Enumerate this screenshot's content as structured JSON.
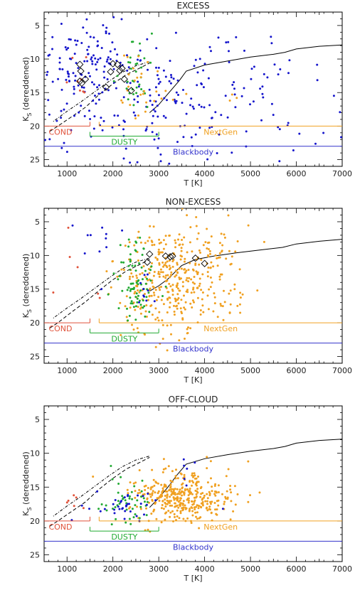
{
  "colors": {
    "axis": "#000000",
    "cond": "#e0523a",
    "dusty": "#22aa33",
    "nextgen": "#f0a020",
    "blackbody": "#3333cc",
    "excess_points": "#1515cc",
    "orange_points": "#f0a020",
    "green_points": "#22aa33",
    "red_points": "#e0523a"
  },
  "chart_data": [
    {
      "type": "scatter",
      "title": "EXCESS",
      "xlabel": "T [K]",
      "ylabel": "K_S (dereddened)",
      "ylabel_main": "K",
      "ylabel_sub": "S",
      "ylabel_rest": " (dereddened)",
      "xlim": [
        500,
        7000
      ],
      "ylim": [
        26,
        3
      ],
      "y_inverted": true,
      "xticks": [
        1000,
        2000,
        3000,
        4000,
        5000,
        6000,
        7000
      ],
      "yticks": [
        5,
        10,
        15,
        20,
        25
      ],
      "regions": [
        {
          "label": "COND",
          "x": [
            500,
            1500
          ],
          "y": 20,
          "color": "cond"
        },
        {
          "label": "DUSTY",
          "x": [
            1500,
            3000
          ],
          "y": 21.5,
          "color": "dusty"
        },
        {
          "label": "NextGen",
          "x": [
            1700,
            7000
          ],
          "y": 20,
          "color": "nextgen"
        },
        {
          "label": "Blackbody",
          "x": [
            500,
            7000
          ],
          "y": 23,
          "color": "blackbody"
        }
      ],
      "series": [
        {
          "color": "blue",
          "density": "high",
          "clusters": [
            [
              2300,
              15.2,
              2000,
              500,
              1.3,
              260,
              900
            ],
            [
              1600,
              9.5,
              500,
              150,
              2.5,
              60,
              100
            ]
          ]
        },
        {
          "color": "green",
          "clusters": [
            [
              2500,
              13,
              150,
              40,
              2.5,
              35,
              200
            ]
          ]
        },
        {
          "color": "orange",
          "clusters": [
            [
              2500,
              13.5,
              200,
              100,
              2,
              22,
              300
            ],
            [
              3000,
              15.5,
              250,
              80,
              0.8,
              6,
              400
            ]
          ]
        },
        {
          "color": "red",
          "clusters": [
            [
              1250,
              12,
              150,
              30,
              2.5,
              8,
              500
            ]
          ]
        }
      ],
      "extra_points": [
        [
          4600,
          15.3,
          "orange"
        ],
        [
          4700,
          15.8,
          "orange"
        ],
        [
          4550,
          16.2,
          "orange"
        ],
        [
          3850,
          12,
          "blue"
        ],
        [
          3600,
          15.2,
          "orange"
        ],
        [
          1350,
          5.3,
          "blue"
        ]
      ],
      "diamonds": [
        [
          1280,
          10.8
        ],
        [
          1300,
          11.8
        ],
        [
          1280,
          13.3
        ],
        [
          1320,
          13.6
        ],
        [
          1400,
          13.0
        ],
        [
          2000,
          10.7
        ],
        [
          2100,
          10.8
        ],
        [
          1950,
          11.9
        ],
        [
          2150,
          11.7
        ],
        [
          2200,
          11.4
        ],
        [
          2250,
          13.0
        ],
        [
          1850,
          14.2
        ],
        [
          2400,
          14.7
        ]
      ],
      "track": "excess"
    },
    {
      "type": "scatter",
      "title": "NON-EXCESS",
      "xlabel": "T [K]",
      "ylabel": "K_S (dereddened)",
      "ylabel_main": "K",
      "ylabel_sub": "S",
      "ylabel_rest": " (dereddened)",
      "xlim": [
        500,
        7000
      ],
      "ylim": [
        26,
        3
      ],
      "y_inverted": true,
      "xticks": [
        1000,
        2000,
        3000,
        4000,
        5000,
        6000,
        7000
      ],
      "yticks": [
        5,
        10,
        15,
        20,
        25
      ],
      "regions": [
        {
          "label": "COND",
          "x": [
            500,
            1500
          ],
          "y": 20,
          "color": "cond"
        },
        {
          "label": "DUSTY",
          "x": [
            1500,
            3000
          ],
          "y": 21.5,
          "color": "dusty"
        },
        {
          "label": "NextGen",
          "x": [
            1700,
            7000
          ],
          "y": 20,
          "color": "nextgen"
        },
        {
          "label": "Blackbody",
          "x": [
            500,
            7000
          ],
          "y": 23,
          "color": "blackbody"
        }
      ],
      "series": [
        {
          "color": "orange",
          "clusters": [
            [
              3200,
              13.5,
              500,
              350,
              2.2,
              340,
              1100
            ],
            [
              4400,
              16.2,
              250,
              150,
              0.5,
              25,
              1200
            ],
            [
              4300,
              10,
              300,
              150,
              2,
              40,
              1300
            ]
          ]
        },
        {
          "color": "green",
          "clusters": [
            [
              2500,
              14,
              200,
              150,
              2.5,
              80,
              1400
            ]
          ]
        },
        {
          "color": "blue",
          "clusters": [
            [
              2700,
              14,
              100,
              150,
              2,
              10,
              1500
            ],
            [
              1800,
              7.5,
              200,
              100,
              1,
              8,
              1600
            ]
          ]
        },
        {
          "color": "red",
          "clusters": [
            [
              1200,
              11,
              300,
              50,
              3,
              5,
              1700
            ]
          ]
        }
      ],
      "extra_points": [
        [
          5300,
          8,
          "orange"
        ],
        [
          5150,
          15.2,
          "orange"
        ],
        [
          2200,
          6.3,
          "blue"
        ],
        [
          1450,
          7,
          "blue"
        ],
        [
          1750,
          15,
          "blue"
        ],
        [
          700,
          15.5,
          "red"
        ]
      ],
      "diamonds": [
        [
          2800,
          9.8
        ],
        [
          2750,
          11
        ],
        [
          3150,
          10.1
        ],
        [
          3250,
          10.2
        ],
        [
          3300,
          10.1
        ],
        [
          3800,
          10.4
        ],
        [
          4000,
          11.2
        ]
      ],
      "track": "nonexcess"
    },
    {
      "type": "scatter",
      "title": "OFF-CLOUD",
      "xlabel": "T [K]",
      "ylabel": "K_S (dereddened)",
      "ylabel_main": "K",
      "ylabel_sub": "S",
      "ylabel_rest": " (dereddened)",
      "xlim": [
        500,
        7000
      ],
      "ylim": [
        26,
        3
      ],
      "y_inverted": true,
      "xticks": [
        1000,
        2000,
        3000,
        4000,
        5000,
        6000,
        7000
      ],
      "yticks": [
        5,
        10,
        15,
        20,
        25
      ],
      "regions": [
        {
          "label": "COND",
          "x": [
            500,
            1500
          ],
          "y": 20,
          "color": "cond"
        },
        {
          "label": "DUSTY",
          "x": [
            1500,
            3000
          ],
          "y": 21.5,
          "color": "dusty"
        },
        {
          "label": "NextGen",
          "x": [
            1700,
            7000
          ],
          "y": 20,
          "color": "nextgen"
        },
        {
          "label": "Blackbody",
          "x": [
            500,
            7000
          ],
          "y": 23,
          "color": "blackbody"
        }
      ],
      "series": [
        {
          "color": "orange",
          "clusters": [
            [
              3500,
              16.5,
              550,
              130,
              1.5,
              380,
              2100
            ]
          ]
        },
        {
          "color": "green",
          "clusters": [
            [
              2300,
              17,
              300,
              150,
              1.5,
              45,
              2200
            ]
          ]
        },
        {
          "color": "blue",
          "clusters": [
            [
              2200,
              17.5,
              450,
              80,
              0.8,
              35,
              2300
            ],
            [
              3600,
              14,
              100,
              150,
              1.5,
              6,
              2400
            ]
          ]
        },
        {
          "color": "red",
          "clusters": [
            [
              1100,
              17.5,
              150,
              30,
              0.6,
              6,
              2500
            ]
          ]
        }
      ],
      "extra_points": [
        [
          4950,
          11.2,
          "orange"
        ],
        [
          4300,
          17,
          "orange"
        ],
        [
          4950,
          17.2,
          "orange"
        ],
        [
          5200,
          15.8,
          "orange"
        ],
        [
          4400,
          18.2,
          "blue"
        ]
      ],
      "diamonds": [],
      "track": "offcloud"
    }
  ]
}
